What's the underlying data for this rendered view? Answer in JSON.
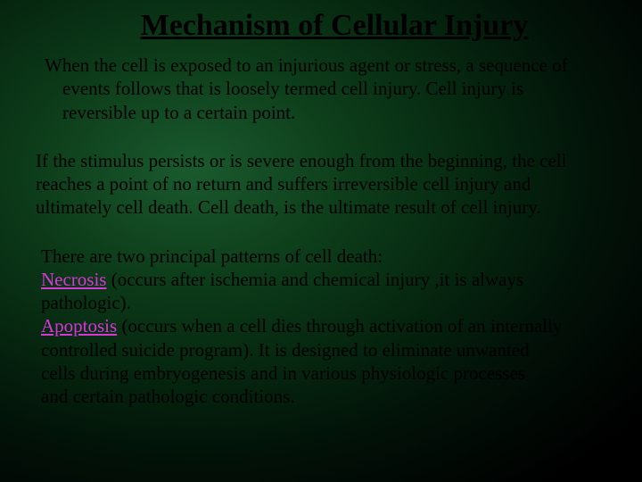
{
  "title": "Mechanism of Cellular Injury",
  "para1_line1": "When the cell is exposed to an injurious agent or stress, a sequence of",
  "para1_line2": "events follows that is loosely termed cell injury. Cell injury is",
  "para1_line3": "reversible up to a certain point.",
  "para2_line1": "If the stimulus persists or is severe enough from the beginning, the cell",
  "para2_line2": "reaches a point of no return and suffers irreversible cell injury and",
  "para2_line3": " ultimately cell death. Cell death, is the ultimate result of cell injury.",
  "para3_intro": " There are two principal patterns of cell death:",
  "keyword_necrosis": "Necrosis",
  "para3_necrosis_rest1": " (occurs after ischemia and chemical injury ,it is always",
  "para3_necrosis_rest2": "pathologic).",
  "keyword_apoptosis": "Apoptosis",
  "para3_apoptosis_rest1": " (occurs when a cell dies through activation of an internally",
  "para3_apoptosis_line2": "controlled suicide program). It is designed to eliminate unwanted",
  "para3_apoptosis_line3": "cells during embryogenesis and in various physiologic processes",
  "para3_apoptosis_line4": " and certain pathologic conditions.",
  "colors": {
    "keyword": "#d936d9",
    "text": "#000000"
  }
}
